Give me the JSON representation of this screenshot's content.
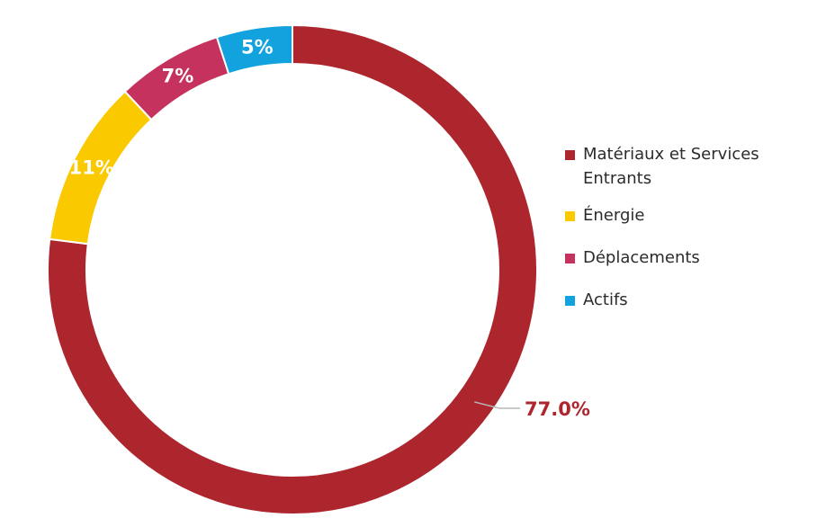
{
  "chart_data": {
    "type": "pie",
    "variant": "donut",
    "slices": [
      {
        "label": "Matériaux et Services Entrants",
        "value": 77.0,
        "display": "77.0%",
        "color": "#ad252d"
      },
      {
        "label": "Énergie",
        "value": 11,
        "display": "11%",
        "color": "#fbc900"
      },
      {
        "label": "Déplacements",
        "value": 7,
        "display": "7%",
        "color": "#c5325e"
      },
      {
        "label": "Actifs",
        "value": 5,
        "display": "5%",
        "color": "#12a3de"
      }
    ],
    "legend_position": "right",
    "title": ""
  }
}
